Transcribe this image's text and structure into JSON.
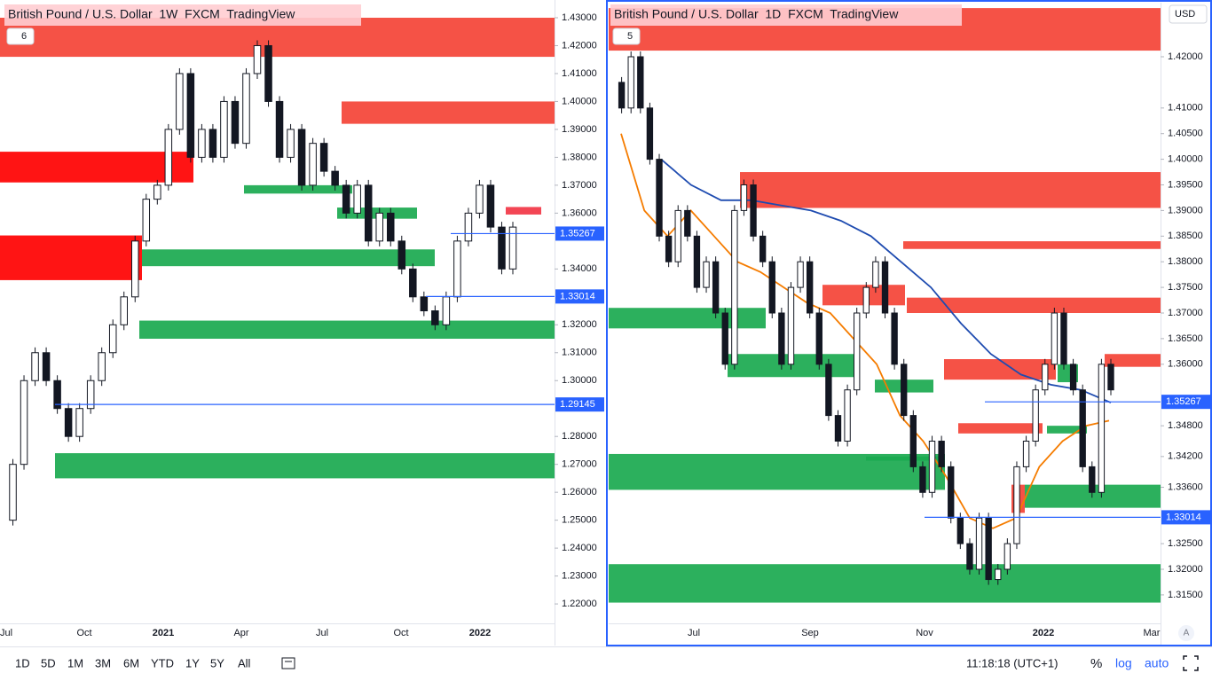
{
  "panes": [
    {
      "title": "British Pound / U.S. Dollar  1W  FXCM  TradingView",
      "badge": "6",
      "price_ticks": [
        {
          "value": 1.43,
          "label": "1.43000"
        },
        {
          "value": 1.42,
          "label": "1.42000"
        },
        {
          "value": 1.41,
          "label": "1.41000"
        },
        {
          "value": 1.4,
          "label": "1.40000"
        },
        {
          "value": 1.39,
          "label": "1.39000"
        },
        {
          "value": 1.38,
          "label": "1.38000"
        },
        {
          "value": 1.37,
          "label": "1.37000"
        },
        {
          "value": 1.36,
          "label": "1.36000"
        },
        {
          "value": 1.34,
          "label": "1.34000"
        },
        {
          "value": 1.32,
          "label": "1.32000"
        },
        {
          "value": 1.31,
          "label": "1.31000"
        },
        {
          "value": 1.3,
          "label": "1.30000"
        },
        {
          "value": 1.28,
          "label": "1.28000"
        },
        {
          "value": 1.27,
          "label": "1.27000"
        },
        {
          "value": 1.26,
          "label": "1.26000"
        },
        {
          "value": 1.25,
          "label": "1.25000"
        },
        {
          "value": 1.24,
          "label": "1.24000"
        },
        {
          "value": 1.23,
          "label": "1.23000"
        },
        {
          "value": 1.22,
          "label": "1.22000"
        }
      ],
      "time_labels": [
        "Jul",
        "Oct",
        "2021",
        "Apr",
        "Jul",
        "Oct",
        "2022"
      ],
      "zones": [
        {
          "low": 1.416,
          "high": 1.43,
          "color": "#f44336"
        },
        {
          "low": 1.392,
          "high": 1.4,
          "color": "#f44336"
        },
        {
          "low": 1.371,
          "high": 1.382,
          "color": "#ff0000"
        },
        {
          "low": 1.336,
          "high": 1.352,
          "color": "#ff0000"
        },
        {
          "low": 1.367,
          "high": 1.37,
          "color": "#1aa94f"
        },
        {
          "low": 1.358,
          "high": 1.362,
          "color": "#1aa94f"
        },
        {
          "low": 1.341,
          "high": 1.347,
          "color": "#1aa94f"
        },
        {
          "low": 1.315,
          "high": 1.3215,
          "color": "#1aa94f"
        },
        {
          "low": 1.265,
          "high": 1.274,
          "color": "#1aa94f"
        },
        {
          "low": 1.3595,
          "high": 1.3622,
          "color": "#f23645"
        }
      ],
      "lines": [
        {
          "price": 1.35267,
          "label": "1.35267"
        },
        {
          "price": 1.33014,
          "label": "1.33014"
        },
        {
          "price": 1.29145,
          "label": "1.29145"
        }
      ],
      "closes": [
        1.25,
        1.27,
        1.3,
        1.31,
        1.3,
        1.29,
        1.28,
        1.29,
        1.3,
        1.31,
        1.32,
        1.33,
        1.35,
        1.365,
        1.37,
        1.39,
        1.41,
        1.38,
        1.39,
        1.38,
        1.4,
        1.385,
        1.41,
        1.42,
        1.4,
        1.38,
        1.39,
        1.37,
        1.385,
        1.375,
        1.37,
        1.36,
        1.37,
        1.35,
        1.36,
        1.35,
        1.34,
        1.33,
        1.325,
        1.32,
        1.33,
        1.35,
        1.36,
        1.37,
        1.355,
        1.34,
        1.355
      ]
    },
    {
      "title": "British Pound / U.S. Dollar  1D  FXCM  TradingView",
      "badge": "5",
      "price_ticks": [
        {
          "value": 1.42,
          "label": "1.42000"
        },
        {
          "value": 1.41,
          "label": "1.41000"
        },
        {
          "value": 1.405,
          "label": "1.40500"
        },
        {
          "value": 1.4,
          "label": "1.40000"
        },
        {
          "value": 1.395,
          "label": "1.39500"
        },
        {
          "value": 1.39,
          "label": "1.39000"
        },
        {
          "value": 1.385,
          "label": "1.38500"
        },
        {
          "value": 1.38,
          "label": "1.38000"
        },
        {
          "value": 1.375,
          "label": "1.37500"
        },
        {
          "value": 1.37,
          "label": "1.37000"
        },
        {
          "value": 1.365,
          "label": "1.36500"
        },
        {
          "value": 1.36,
          "label": "1.36000"
        },
        {
          "value": 1.348,
          "label": "1.34800"
        },
        {
          "value": 1.342,
          "label": "1.34200"
        },
        {
          "value": 1.336,
          "label": "1.33600"
        },
        {
          "value": 1.325,
          "label": "1.32500"
        },
        {
          "value": 1.32,
          "label": "1.32000"
        },
        {
          "value": 1.315,
          "label": "1.31500"
        }
      ],
      "time_labels": [
        "Jul",
        "Sep",
        "Nov",
        "2022",
        "Mar"
      ],
      "zones": [
        {
          "low": 1.4212,
          "high": 1.4295,
          "color": "#f44336"
        },
        {
          "low": 1.3905,
          "high": 1.3975,
          "color": "#f44336"
        },
        {
          "low": 1.3825,
          "high": 1.384,
          "color": "#f44336"
        },
        {
          "low": 1.3715,
          "high": 1.3755,
          "color": "#f44336"
        },
        {
          "low": 1.37,
          "high": 1.373,
          "color": "#f44336"
        },
        {
          "low": 1.367,
          "high": 1.371,
          "color": "#1aa94f"
        },
        {
          "low": 1.3575,
          "high": 1.362,
          "color": "#1aa94f"
        },
        {
          "low": 1.3545,
          "high": 1.357,
          "color": "#1aa94f"
        },
        {
          "low": 1.357,
          "high": 1.361,
          "color": "#f44336"
        },
        {
          "low": 1.3595,
          "high": 1.362,
          "color": "#f44336"
        },
        {
          "low": 1.3565,
          "high": 1.36,
          "color": "#1aa94f"
        },
        {
          "low": 1.3465,
          "high": 1.3485,
          "color": "#f44336"
        },
        {
          "low": 1.3465,
          "high": 1.348,
          "color": "#1aa94f"
        },
        {
          "low": 1.3412,
          "high": 1.342,
          "color": "#1aa94f"
        },
        {
          "low": 1.3355,
          "high": 1.3425,
          "color": "#1aa94f"
        },
        {
          "low": 1.331,
          "high": 1.3365,
          "color": "#f44336"
        },
        {
          "low": 1.332,
          "high": 1.3365,
          "color": "#1aa94f"
        },
        {
          "low": 1.3135,
          "high": 1.321,
          "color": "#1aa94f"
        }
      ],
      "lines": [
        {
          "price": 1.35267,
          "label": "1.35267"
        },
        {
          "price": 1.33014,
          "label": "1.33014"
        }
      ],
      "closes": [
        1.415,
        1.41,
        1.42,
        1.41,
        1.4,
        1.385,
        1.38,
        1.39,
        1.385,
        1.375,
        1.38,
        1.37,
        1.36,
        1.39,
        1.395,
        1.385,
        1.38,
        1.37,
        1.36,
        1.375,
        1.38,
        1.37,
        1.36,
        1.35,
        1.345,
        1.355,
        1.37,
        1.375,
        1.38,
        1.37,
        1.36,
        1.35,
        1.34,
        1.335,
        1.345,
        1.34,
        1.33,
        1.325,
        1.32,
        1.33,
        1.318,
        1.32,
        1.325,
        1.34,
        1.345,
        1.355,
        1.36,
        1.37,
        1.36,
        1.355,
        1.34,
        1.335,
        1.36,
        1.355
      ],
      "ma_fast": [
        1.405,
        1.39,
        1.385,
        1.39,
        1.385,
        1.38,
        1.378,
        1.375,
        1.372,
        1.37,
        1.365,
        1.36,
        1.35,
        1.345,
        1.338,
        1.33,
        1.328,
        1.33,
        1.34,
        1.345,
        1.348,
        1.349
      ],
      "ma_slow": [
        1.4,
        1.395,
        1.392,
        1.392,
        1.391,
        1.39,
        1.388,
        1.385,
        1.38,
        1.375,
        1.368,
        1.362,
        1.358,
        1.356,
        1.355,
        1.3525
      ],
      "ma_fast_color": "#f57c00",
      "ma_slow_color": "#1e4bb0"
    }
  ],
  "currency": "USD",
  "axis_mode": "A",
  "toolbar": {
    "ranges": [
      "1D",
      "5D",
      "1M",
      "3M",
      "6M",
      "YTD",
      "1Y",
      "5Y",
      "All"
    ],
    "clock": "11:18:18 (UTC+1)",
    "percent": "%",
    "log": "log",
    "auto": "auto"
  }
}
